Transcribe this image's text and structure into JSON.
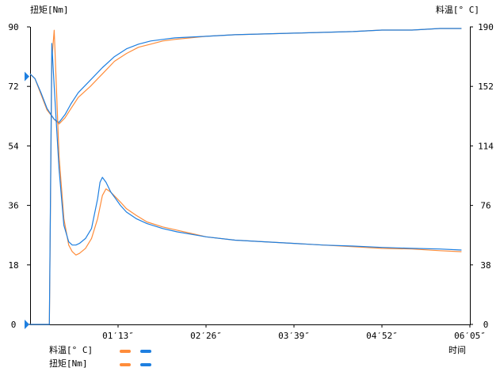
{
  "chart_data": {
    "type": "line",
    "left_axis_title": "扭矩[Nm]",
    "right_axis_title": "料温[° C]",
    "xlabel": "时间",
    "left_axis": {
      "ticks": [
        "0",
        "18",
        "36",
        "54",
        "72",
        "90"
      ],
      "ylim": [
        0,
        90
      ]
    },
    "right_axis": {
      "ticks": [
        "0",
        "38",
        "76",
        "114",
        "152",
        "190"
      ],
      "ylim": [
        0,
        190
      ]
    },
    "x_ticks": [
      "01′13″",
      "02′26″",
      "03′39″",
      "04′52″",
      "06′05″"
    ],
    "xlim_seconds": [
      0,
      365
    ],
    "grid": false,
    "legend": [
      {
        "label": "料温[° C]",
        "colors": [
          "#ff8c3a",
          "#1e7fe0"
        ]
      },
      {
        "label": "扭矩[Nm]",
        "colors": [
          "#ff8c3a",
          "#1e7fe0"
        ]
      }
    ],
    "series": [
      {
        "measure": "料温",
        "color": "#ff8c3a",
        "axis": "right",
        "x": [
          0,
          4,
          9,
          14,
          20,
          24,
          29,
          34,
          40,
          50,
          60,
          70,
          80,
          90,
          100,
          110,
          120,
          146,
          170,
          219,
          268,
          292,
          317,
          340,
          358
        ],
        "y": [
          160,
          157,
          147,
          137,
          131,
          128,
          132,
          138,
          145,
          152,
          160,
          168,
          173,
          177,
          179,
          181,
          182,
          184,
          185,
          186,
          187,
          188,
          188,
          189,
          189
        ]
      },
      {
        "measure": "料温",
        "color": "#1e7fe0",
        "axis": "right",
        "x": [
          0,
          4,
          9,
          14,
          20,
          24,
          29,
          34,
          40,
          50,
          60,
          70,
          80,
          90,
          100,
          110,
          120,
          146,
          170,
          219,
          268,
          292,
          317,
          340,
          358
        ],
        "y": [
          160,
          157,
          148,
          138,
          131,
          129,
          134,
          141,
          148,
          156,
          164,
          171,
          176,
          179,
          181,
          182,
          183,
          184,
          185,
          186,
          187,
          188,
          188,
          189,
          189
        ]
      },
      {
        "measure": "扭矩",
        "color": "#ff8c3a",
        "axis": "left",
        "x": [
          0,
          5,
          10,
          13,
          16,
          18,
          20,
          24,
          28,
          32,
          35,
          38,
          41,
          46,
          51,
          56,
          60,
          63,
          67,
          71,
          75,
          80,
          88,
          97,
          110,
          122,
          146,
          170,
          195,
          219,
          243,
          268,
          292,
          317,
          340,
          358
        ],
        "y": [
          0,
          0,
          0,
          0,
          0,
          80,
          89,
          51,
          32,
          24,
          22,
          21,
          21.5,
          23,
          26,
          32,
          39,
          41,
          40,
          38.5,
          37,
          35,
          33,
          31,
          29.5,
          28.5,
          26.5,
          25.5,
          25,
          24.5,
          24,
          23.5,
          23,
          22.8,
          22.3,
          22
        ]
      },
      {
        "measure": "扭矩",
        "color": "#1e7fe0",
        "axis": "left",
        "x": [
          0,
          5,
          10,
          13,
          16,
          18,
          20,
          24,
          28,
          32,
          35,
          38,
          41,
          46,
          51,
          56,
          58,
          60,
          63,
          67,
          71,
          75,
          80,
          88,
          97,
          110,
          122,
          146,
          170,
          195,
          219,
          243,
          268,
          292,
          317,
          340,
          358
        ],
        "y": [
          0,
          0,
          0,
          0,
          0,
          85,
          72,
          47,
          30,
          25,
          24,
          24,
          24.5,
          26,
          29,
          38,
          43,
          44.5,
          43,
          40,
          38,
          36,
          34,
          32,
          30.5,
          29,
          28,
          26.5,
          25.5,
          25,
          24.5,
          24,
          23.7,
          23.3,
          23,
          22.8,
          22.5
        ]
      }
    ],
    "markers": [
      {
        "axis": "left",
        "value": 0,
        "color": "#1e7fe0"
      },
      {
        "axis": "left",
        "value": 75,
        "color": "#1e7fe0"
      }
    ]
  }
}
